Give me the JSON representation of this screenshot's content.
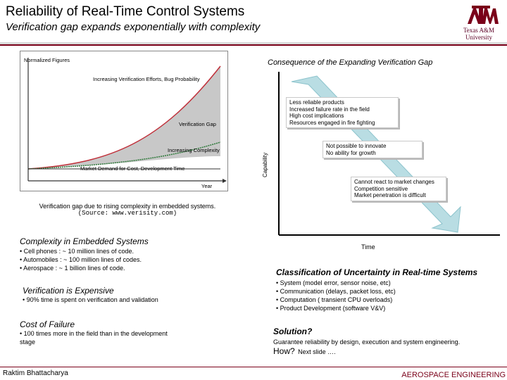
{
  "header": {
    "title": "Reliability of Real-Time Control Systems",
    "subtitle": "Verification gap expands exponentially with complexity",
    "logo_text_1": "Texas A&M",
    "logo_text_2": "University"
  },
  "figure": {
    "label_normalized": "Normalized Figures",
    "label_efforts": "Increasing Verification Efforts, Bug Probability",
    "label_gap": "Verification Gap",
    "label_complexity": "Increasing Complexity",
    "label_market": "Market Demand for Cost, Development Time",
    "label_year": "Year",
    "caption_1": "Verification gap due to rising complexity in embedded systems.",
    "caption_2": "(Source: www.verisity.com)"
  },
  "consequence": {
    "heading": "Consequence of the Expanding Verification Gap",
    "y_label": "Capability",
    "x_label": "Time",
    "callout_1": [
      "Less reliable products",
      "Increased failure rate in the field",
      "High cost implications",
      "Resources engaged in fire fighting"
    ],
    "callout_2": [
      "Not possible to innovate",
      "No ability for growth"
    ],
    "callout_3": [
      "Cannot react to market changes",
      "Competition sensitive",
      "Market penetration is difficult"
    ]
  },
  "left_sections": {
    "complexity_heading": "Complexity in Embedded Systems",
    "complexity_items": [
      "• Cell phones : ~ 10 million lines of code.",
      "• Automobiles : ~ 100 million lines of codes.",
      "• Aerospace : ~ 1 billion lines of code."
    ],
    "verification_heading": "Verification is Expensive",
    "verification_item": "• 90% time is spent on verification and validation",
    "failure_heading": "Cost of Failure",
    "failure_item_1": "• 100 times more in the field than in the development",
    "failure_item_2": "stage"
  },
  "right_sections": {
    "classification_heading": "Classification of Uncertainty in Real-time Systems",
    "classification_items": [
      "• System (model error, sensor noise, etc)",
      "• Communication (delays, packet loss, etc)",
      "• Computation ( transient CPU overloads)",
      "• Product Development (software V&V)"
    ],
    "solution_heading": "Solution?",
    "solution_text": "Guarantee reliability by design, execution and system engineering.",
    "how_label": "How?",
    "how_text": "Next slide …."
  },
  "footer": {
    "author": "Raktim Bhattacharya",
    "department": "AEROSPACE ENGINEERING"
  },
  "colors": {
    "maroon": "#7a0019",
    "gap_fill": "#c8c8c8",
    "arrow_fill": "#b9dde3",
    "efforts_line": "#c0303a",
    "complexity_line": "#2f7a3b"
  }
}
